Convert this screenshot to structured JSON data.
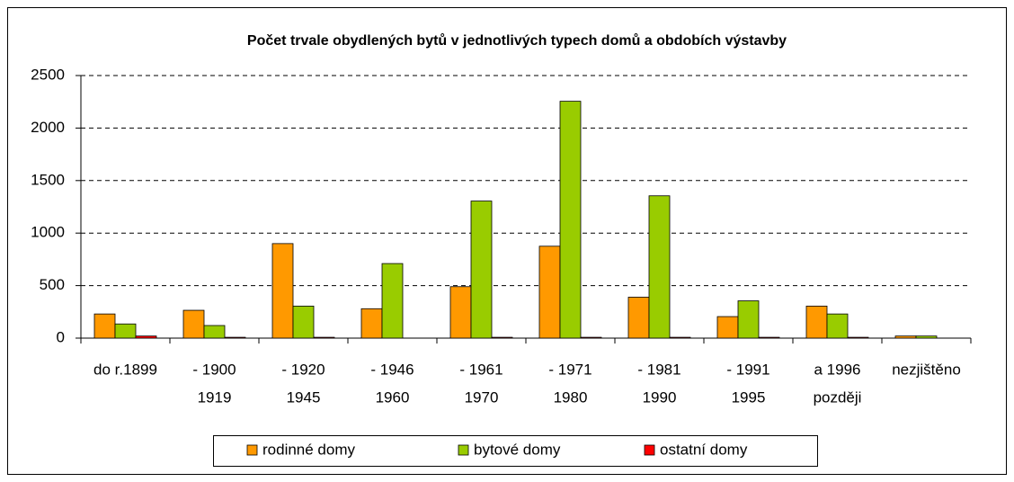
{
  "chart_data": {
    "type": "bar",
    "title": "Počet trvale obydlených bytů v jednotlivých typech domů a obdobích výstavby",
    "categories": [
      [
        "do r.1899"
      ],
      [
        "- 1900",
        "1919"
      ],
      [
        "- 1920",
        "1945"
      ],
      [
        "- 1946",
        "1960"
      ],
      [
        "- 1961",
        "1970"
      ],
      [
        "- 1971",
        "1980"
      ],
      [
        "- 1981",
        "1990"
      ],
      [
        "- 1991",
        "1995"
      ],
      [
        "a 1996",
        "později"
      ],
      [
        "nezjištěno"
      ]
    ],
    "series": [
      {
        "name": "rodinné domy",
        "color": "#ff9900",
        "values": [
          230,
          265,
          900,
          280,
          490,
          875,
          390,
          205,
          305,
          20
        ]
      },
      {
        "name": "bytové domy",
        "color": "#99cc00",
        "values": [
          135,
          120,
          305,
          710,
          1305,
          2255,
          1355,
          355,
          230,
          20
        ]
      },
      {
        "name": "ostatní domy",
        "color": "#ff0000",
        "values": [
          20,
          8,
          8,
          0,
          8,
          8,
          8,
          8,
          8,
          0
        ]
      }
    ],
    "ylim": [
      0,
      2500
    ],
    "yticks": [
      0,
      500,
      1000,
      1500,
      2000,
      2500
    ],
    "grid": true,
    "legend": "bottom"
  }
}
